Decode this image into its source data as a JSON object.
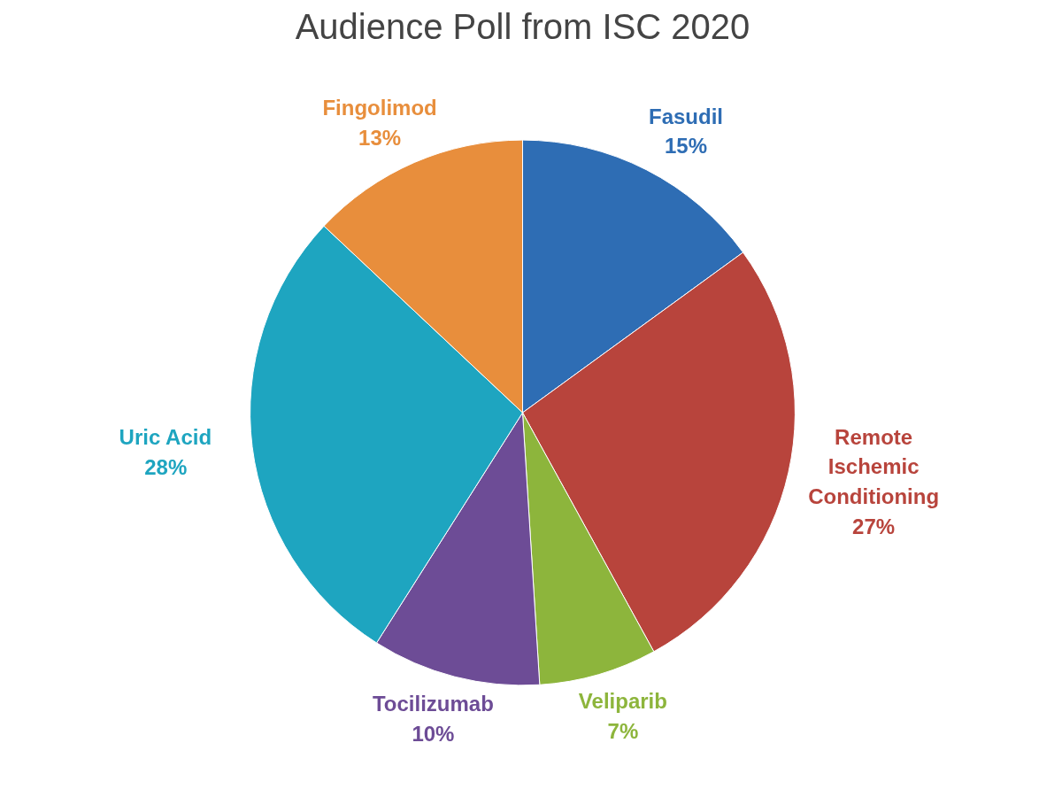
{
  "chart_data": {
    "type": "pie",
    "title": "Audience Poll from ISC 2020",
    "categories": [
      "Fasudil",
      "Remote Ischemic Conditioning",
      "Veliparib",
      "Tocilizumab",
      "Uric Acid",
      "Fingolimod"
    ],
    "values": [
      15,
      27,
      7,
      10,
      28,
      13
    ],
    "colors": [
      "#2e6db4",
      "#b8443c",
      "#8db53c",
      "#6d4c96",
      "#1ea5c0",
      "#e88e3c"
    ],
    "value_labels": [
      "15%",
      "27%",
      "7%",
      "10%",
      "28%",
      "13%"
    ]
  }
}
